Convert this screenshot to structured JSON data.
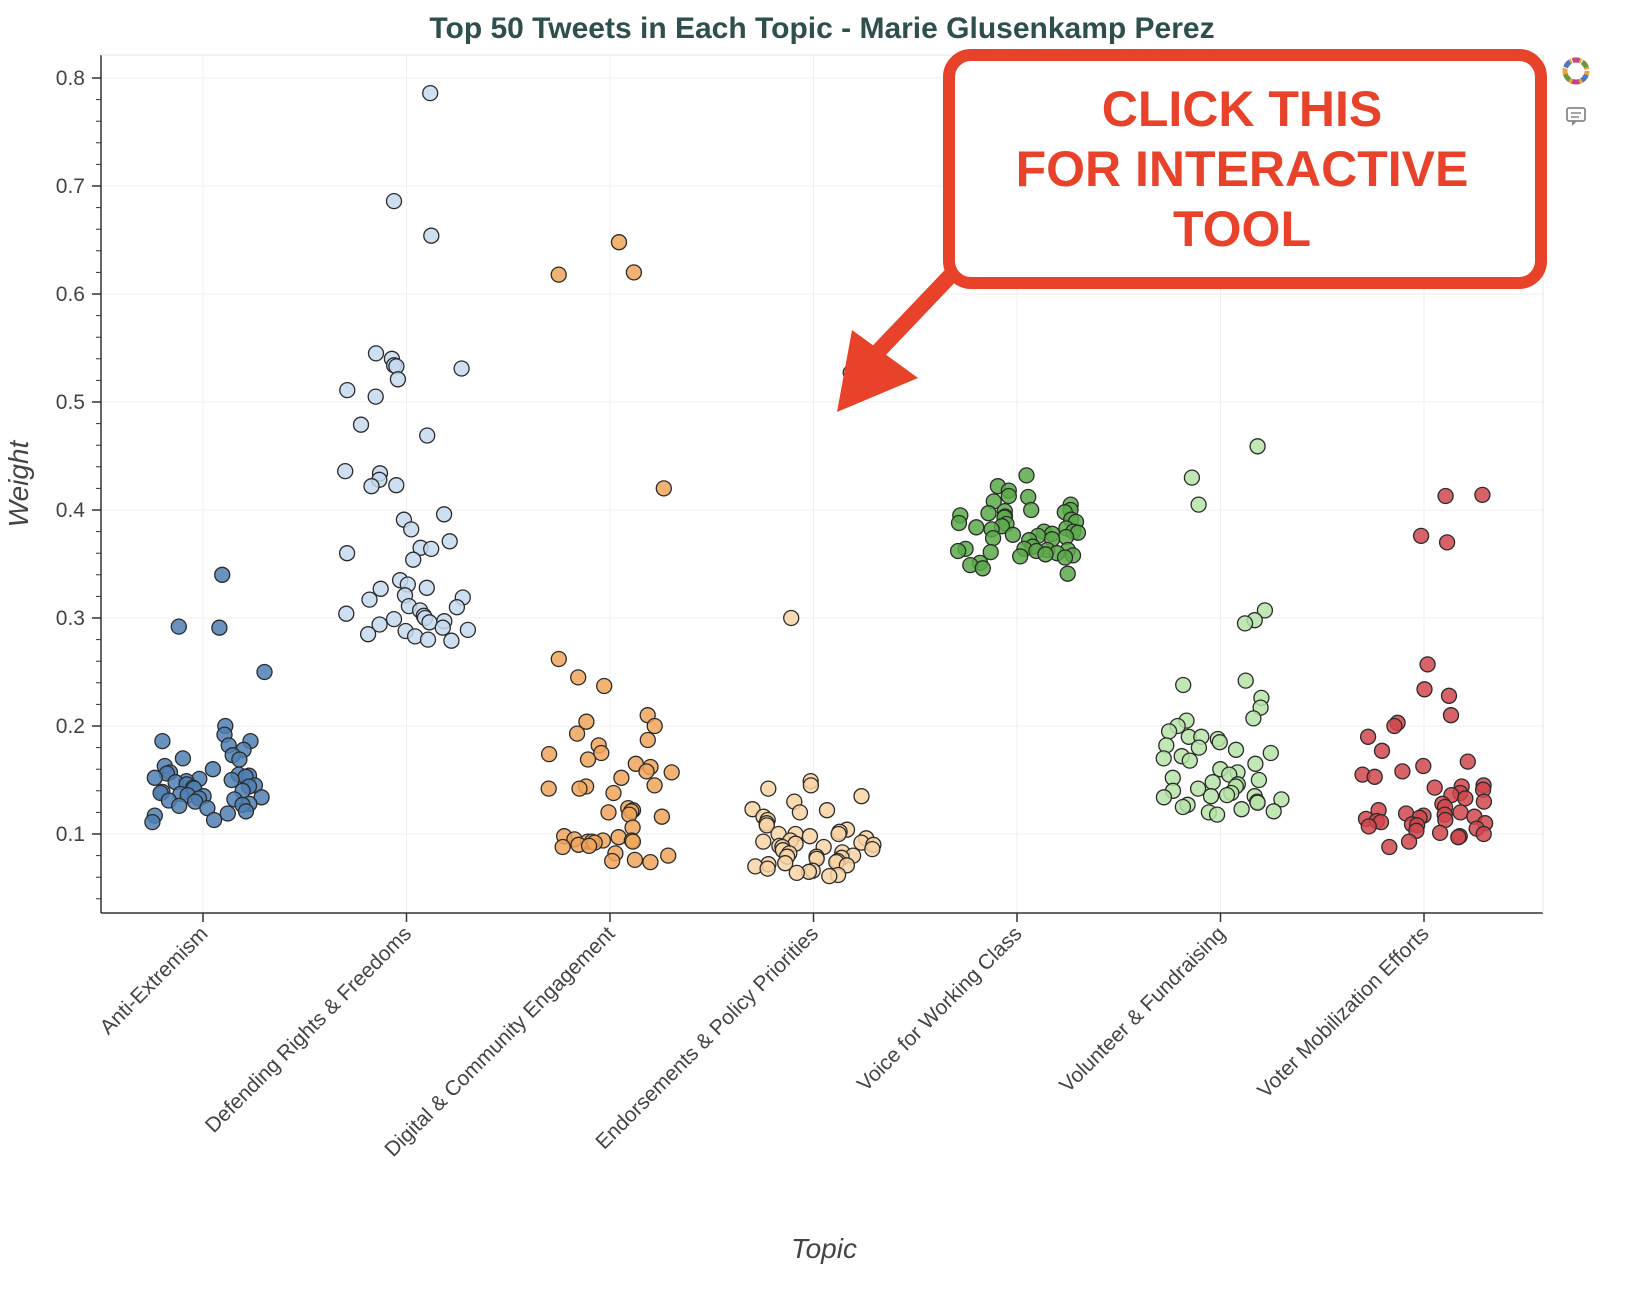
{
  "chart_data": {
    "type": "scatter",
    "title": "Top 50 Tweets in Each Topic - Marie Glusenkamp Perez",
    "xlabel": "Topic",
    "ylabel": "Weight",
    "ylim": [
      0.02,
      0.82
    ],
    "yticks": [
      0.1,
      0.2,
      0.3,
      0.4,
      0.5,
      0.6,
      0.7,
      0.8
    ],
    "grid": true,
    "categories": [
      "Anti-Extremism",
      "Defending Rights & Freedoms",
      "Digital & Community Engagement",
      "Endorsements & Policy Priorities",
      "Voice for Working Class",
      "Volunteer & Fundraising",
      "Voter Mobilization Efforts"
    ],
    "series": [
      {
        "category": "Anti-Extremism",
        "color": "#4f7fb3",
        "values": [
          0.34,
          0.292,
          0.291,
          0.25,
          0.2,
          0.192,
          0.186,
          0.186,
          0.182,
          0.178,
          0.173,
          0.17,
          0.169,
          0.163,
          0.16,
          0.157,
          0.156,
          0.155,
          0.154,
          0.153,
          0.152,
          0.151,
          0.15,
          0.149,
          0.148,
          0.146,
          0.145,
          0.144,
          0.143,
          0.142,
          0.14,
          0.139,
          0.138,
          0.137,
          0.136,
          0.135,
          0.134,
          0.133,
          0.132,
          0.131,
          0.13,
          0.128,
          0.127,
          0.126,
          0.124,
          0.121,
          0.119,
          0.117,
          0.113,
          0.111
        ]
      },
      {
        "category": "Defending Rights & Freedoms",
        "color": "#c6d9ee",
        "values": [
          0.786,
          0.686,
          0.654,
          0.545,
          0.54,
          0.534,
          0.533,
          0.531,
          0.521,
          0.511,
          0.505,
          0.479,
          0.469,
          0.436,
          0.434,
          0.428,
          0.423,
          0.422,
          0.396,
          0.391,
          0.382,
          0.371,
          0.365,
          0.364,
          0.36,
          0.354,
          0.335,
          0.331,
          0.328,
          0.327,
          0.321,
          0.319,
          0.317,
          0.311,
          0.31,
          0.307,
          0.304,
          0.302,
          0.3,
          0.299,
          0.297,
          0.296,
          0.294,
          0.291,
          0.289,
          0.288,
          0.285,
          0.283,
          0.28,
          0.279
        ]
      },
      {
        "category": "Digital & Community Engagement",
        "color": "#f0a45a",
        "values": [
          0.648,
          0.62,
          0.618,
          0.42,
          0.262,
          0.245,
          0.237,
          0.21,
          0.204,
          0.2,
          0.193,
          0.187,
          0.182,
          0.175,
          0.174,
          0.169,
          0.165,
          0.162,
          0.158,
          0.157,
          0.152,
          0.145,
          0.144,
          0.142,
          0.142,
          0.138,
          0.124,
          0.122,
          0.121,
          0.12,
          0.118,
          0.116,
          0.106,
          0.098,
          0.097,
          0.095,
          0.094,
          0.094,
          0.093,
          0.093,
          0.093,
          0.092,
          0.09,
          0.089,
          0.088,
          0.082,
          0.08,
          0.076,
          0.075,
          0.074
        ]
      },
      {
        "category": "Endorsements & Policy Priorities",
        "color": "#f9d4a4",
        "values": [
          0.527,
          0.3,
          0.149,
          0.145,
          0.142,
          0.135,
          0.13,
          0.123,
          0.122,
          0.12,
          0.116,
          0.113,
          0.11,
          0.108,
          0.104,
          0.102,
          0.1,
          0.1,
          0.1,
          0.098,
          0.096,
          0.094,
          0.093,
          0.092,
          0.091,
          0.09,
          0.089,
          0.088,
          0.088,
          0.086,
          0.085,
          0.083,
          0.082,
          0.08,
          0.079,
          0.079,
          0.078,
          0.077,
          0.075,
          0.074,
          0.073,
          0.072,
          0.071,
          0.07,
          0.068,
          0.066,
          0.065,
          0.064,
          0.062,
          0.061
        ]
      },
      {
        "category": "Voice for Working Class",
        "color": "#5aaa4a",
        "values": [
          0.432,
          0.422,
          0.418,
          0.413,
          0.412,
          0.408,
          0.405,
          0.4,
          0.4,
          0.399,
          0.398,
          0.397,
          0.395,
          0.394,
          0.393,
          0.391,
          0.389,
          0.388,
          0.387,
          0.385,
          0.384,
          0.383,
          0.382,
          0.38,
          0.38,
          0.379,
          0.378,
          0.377,
          0.376,
          0.375,
          0.374,
          0.373,
          0.372,
          0.366,
          0.364,
          0.364,
          0.363,
          0.363,
          0.362,
          0.362,
          0.361,
          0.36,
          0.359,
          0.358,
          0.357,
          0.356,
          0.351,
          0.349,
          0.346,
          0.341
        ]
      },
      {
        "category": "Volunteer & Fundraising",
        "color": "#b6e3a8",
        "values": [
          0.459,
          0.43,
          0.405,
          0.307,
          0.298,
          0.295,
          0.242,
          0.238,
          0.226,
          0.217,
          0.207,
          0.205,
          0.2,
          0.195,
          0.19,
          0.19,
          0.188,
          0.185,
          0.182,
          0.18,
          0.178,
          0.175,
          0.172,
          0.17,
          0.168,
          0.165,
          0.16,
          0.157,
          0.155,
          0.152,
          0.15,
          0.148,
          0.146,
          0.144,
          0.142,
          0.14,
          0.138,
          0.136,
          0.135,
          0.135,
          0.134,
          0.132,
          0.13,
          0.129,
          0.127,
          0.125,
          0.123,
          0.121,
          0.12,
          0.118
        ]
      },
      {
        "category": "Voter Mobilization Efforts",
        "color": "#d0464c",
        "values": [
          0.414,
          0.413,
          0.376,
          0.37,
          0.257,
          0.234,
          0.228,
          0.21,
          0.203,
          0.2,
          0.19,
          0.177,
          0.167,
          0.163,
          0.158,
          0.155,
          0.153,
          0.145,
          0.144,
          0.143,
          0.141,
          0.138,
          0.136,
          0.133,
          0.13,
          0.128,
          0.125,
          0.122,
          0.12,
          0.119,
          0.118,
          0.117,
          0.116,
          0.115,
          0.114,
          0.113,
          0.112,
          0.111,
          0.11,
          0.109,
          0.108,
          0.107,
          0.105,
          0.103,
          0.101,
          0.1,
          0.098,
          0.097,
          0.093,
          0.088
        ]
      }
    ]
  },
  "callout": {
    "line1": "CLICK THIS",
    "line2": "FOR INTERACTIVE",
    "line3": "TOOL",
    "color": "#e8432a"
  },
  "toolbar": {
    "logo_icon": "bokeh-logo-icon",
    "help_icon": "speech-bubble-icon"
  }
}
